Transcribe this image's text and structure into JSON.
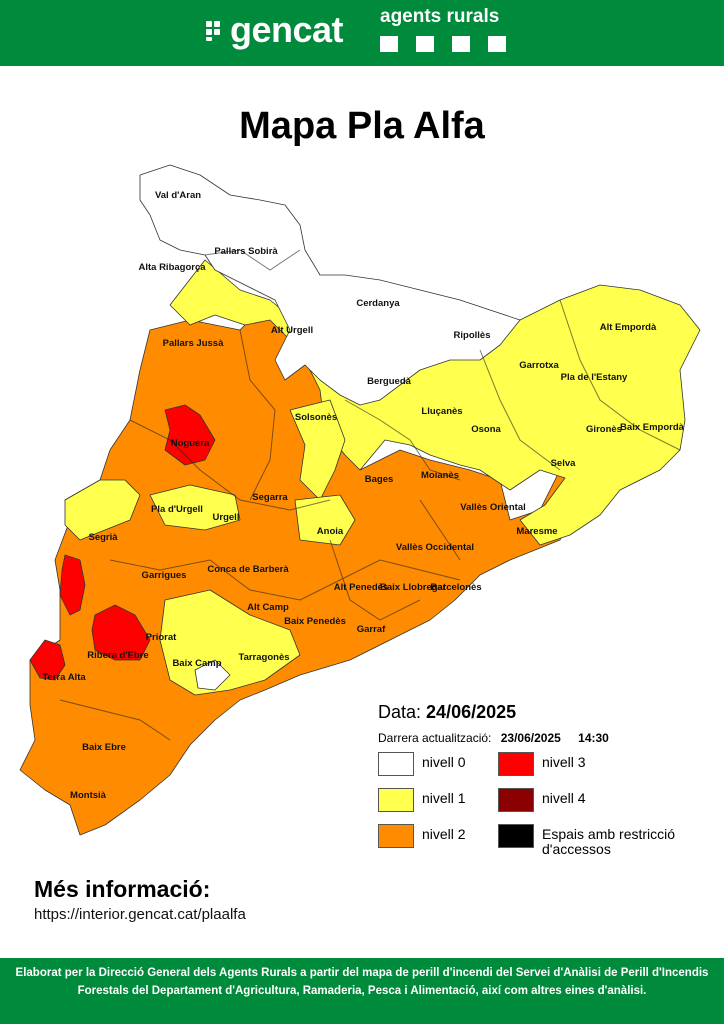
{
  "header": {
    "brand": "gencat",
    "agency": "agents rurals",
    "colors": {
      "background": "#008a3b",
      "text": "#ffffff"
    }
  },
  "title": "Mapa Pla Alfa",
  "map": {
    "levels": {
      "nivell_0": "#ffffff",
      "nivell_1": "#ffff4d",
      "nivell_2": "#ff8c00",
      "nivell_3": "#ff0000",
      "nivell_4": "#8b0000",
      "restriccio": "#000000"
    },
    "regions": [
      "Val d'Aran",
      "Pallars Sobirà",
      "Alta Ribagorça",
      "Cerdanya",
      "Alt Urgell",
      "Pallars Jussà",
      "Ripollès",
      "Alt Empordà",
      "Garrotxa",
      "Pla de l'Estany",
      "Berguedà",
      "Solsonès",
      "Lluçanès",
      "Osona",
      "Gironès",
      "Baix Empordà",
      "Noguera",
      "Selva",
      "Moianès",
      "Bages",
      "Segarra",
      "Pla d'Urgell",
      "Urgell",
      "Vallès Oriental",
      "Segrià",
      "Anoia",
      "Maresme",
      "Vallès Occidental",
      "Garrigues",
      "Conca de Barberà",
      "Alt Penedès",
      "Baix Llobregat",
      "Barcelonès",
      "Alt Camp",
      "Baix Penedès",
      "Garraf",
      "Priorat",
      "Ribera d'Ebre",
      "Baix Camp",
      "Tarragonès",
      "Terra Alta",
      "Baix Ebre",
      "Montsià"
    ]
  },
  "date": {
    "label": "Data:",
    "value": "24/06/2025"
  },
  "last_update": {
    "label": "Darrera actualització:",
    "date": "23/06/2025",
    "time": "14:30"
  },
  "legend": [
    {
      "label": "nivell 0",
      "color": "#ffffff"
    },
    {
      "label": "nivell 3",
      "color": "#ff0000"
    },
    {
      "label": "nivell 1",
      "color": "#ffff4d"
    },
    {
      "label": "nivell 4",
      "color": "#8b0000"
    },
    {
      "label": "nivell 2",
      "color": "#ff8c00"
    },
    {
      "label": "Espais amb restricció d'accessos",
      "color": "#000000"
    }
  ],
  "more_info": {
    "title": "Més informació:",
    "url": "https://interior.gencat.cat/plaalfa"
  },
  "footer": "Elaborat per la Direcció General dels Agents Rurals a partir del mapa de perill d'incendi del Servei d'Anàlisi de Perill d'Incendis Forestals del Departament d'Agricultura, Ramaderia, Pesca i Alimentació, així com altres eines d'anàlisi."
}
